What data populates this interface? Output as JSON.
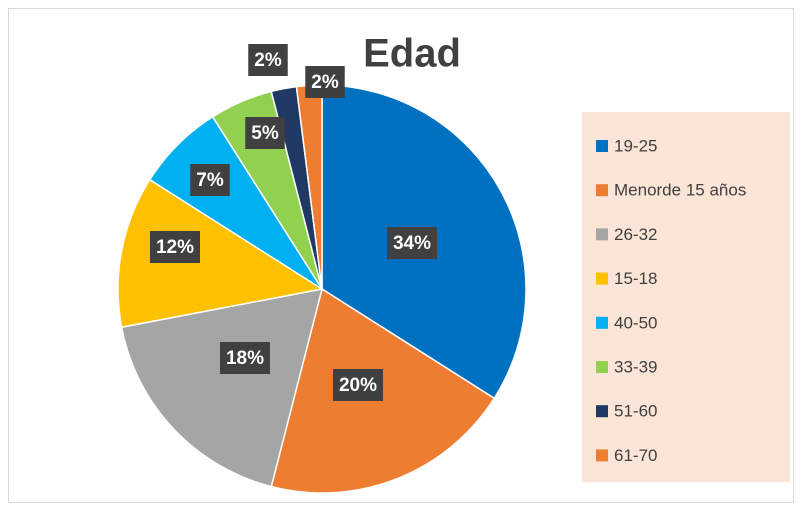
{
  "chart_data": {
    "type": "pie",
    "title": "Edad",
    "categories": [
      "19-25",
      "Menorde 15 años",
      "26-32",
      "15-18",
      "40-50",
      "33-39",
      "51-60",
      "61-70"
    ],
    "values": [
      34,
      20,
      18,
      12,
      7,
      5,
      2,
      2
    ],
    "value_labels": [
      "34%",
      "20%",
      "18%",
      "12%",
      "7%",
      "5%",
      "2%",
      "2%"
    ],
    "colors": [
      "#0070c0",
      "#ed7d31",
      "#a5a5a5",
      "#ffc000",
      "#00b0f0",
      "#92d050",
      "#1f3864",
      "#ed7d31"
    ],
    "legend": "right"
  }
}
